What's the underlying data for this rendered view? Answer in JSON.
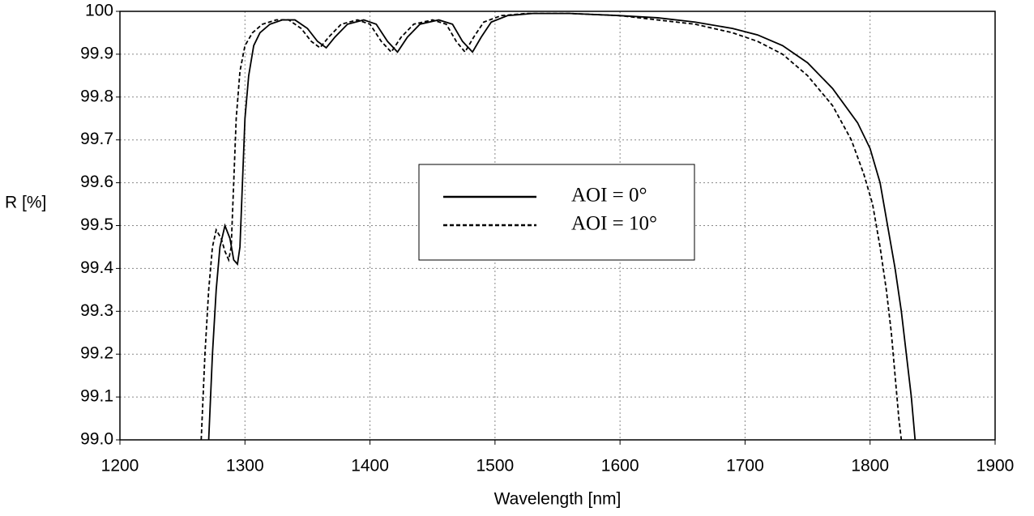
{
  "chart_data": {
    "type": "line",
    "xlabel": "Wavelength [nm]",
    "ylabel": "R [%]",
    "xlim": [
      1200,
      1900
    ],
    "xticks": [
      1200,
      1300,
      1400,
      1500,
      1600,
      1700,
      1800,
      1900
    ],
    "ylim": [
      99,
      100
    ],
    "yticks": [
      {
        "value": 99,
        "label": "99.0"
      },
      99.1,
      99.2,
      99.3,
      99.4,
      99.5,
      99.6,
      99.7,
      99.8,
      99.9,
      100
    ],
    "grid": true,
    "legend": "center",
    "series": [
      {
        "name": "AOI =  0°",
        "color": "#000000",
        "style": "solid",
        "x": [
          1271,
          1274,
          1277,
          1280,
          1284,
          1288,
          1291,
          1294,
          1296,
          1298,
          1300,
          1303,
          1307,
          1312,
          1320,
          1330,
          1340,
          1350,
          1358,
          1365,
          1372,
          1382,
          1395,
          1405,
          1414,
          1422,
          1430,
          1440,
          1455,
          1466,
          1474,
          1482,
          1489,
          1497,
          1510,
          1530,
          1560,
          1600,
          1630,
          1660,
          1690,
          1710,
          1730,
          1750,
          1770,
          1790,
          1800,
          1808,
          1814,
          1820,
          1825,
          1829,
          1833,
          1836
        ],
        "values": [
          99.0,
          99.2,
          99.35,
          99.45,
          99.5,
          99.47,
          99.42,
          99.41,
          99.45,
          99.6,
          99.75,
          99.85,
          99.92,
          99.95,
          99.97,
          99.98,
          99.98,
          99.96,
          99.93,
          99.915,
          99.94,
          99.97,
          99.98,
          99.97,
          99.93,
          99.905,
          99.94,
          99.97,
          99.98,
          99.97,
          99.93,
          99.905,
          99.94,
          99.975,
          99.99,
          99.995,
          99.995,
          99.99,
          99.985,
          99.975,
          99.96,
          99.945,
          99.92,
          99.88,
          99.82,
          99.74,
          99.68,
          99.6,
          99.5,
          99.4,
          99.3,
          99.2,
          99.1,
          99.0
        ]
      },
      {
        "name": "AOI = 10°",
        "color": "#000000",
        "style": "dashed",
        "x": [
          1265,
          1268,
          1271,
          1274,
          1277,
          1281,
          1284,
          1287,
          1289,
          1291,
          1293,
          1296,
          1300,
          1306,
          1314,
          1325,
          1335,
          1345,
          1353,
          1360,
          1367,
          1377,
          1390,
          1400,
          1409,
          1417,
          1425,
          1435,
          1450,
          1461,
          1469,
          1476,
          1483,
          1491,
          1505,
          1525,
          1560,
          1600,
          1630,
          1660,
          1690,
          1710,
          1730,
          1750,
          1770,
          1785,
          1795,
          1802,
          1808,
          1813,
          1817,
          1820,
          1823,
          1825
        ],
        "values": [
          99.0,
          99.2,
          99.35,
          99.45,
          99.49,
          99.47,
          99.44,
          99.42,
          99.45,
          99.6,
          99.75,
          99.86,
          99.92,
          99.95,
          99.97,
          99.98,
          99.98,
          99.96,
          99.93,
          99.915,
          99.94,
          99.97,
          99.98,
          99.97,
          99.93,
          99.905,
          99.94,
          99.97,
          99.98,
          99.97,
          99.93,
          99.905,
          99.94,
          99.975,
          99.99,
          99.995,
          99.995,
          99.99,
          99.98,
          99.97,
          99.95,
          99.93,
          99.9,
          99.85,
          99.78,
          99.7,
          99.62,
          99.55,
          99.45,
          99.35,
          99.25,
          99.15,
          99.05,
          99.0
        ]
      }
    ]
  }
}
